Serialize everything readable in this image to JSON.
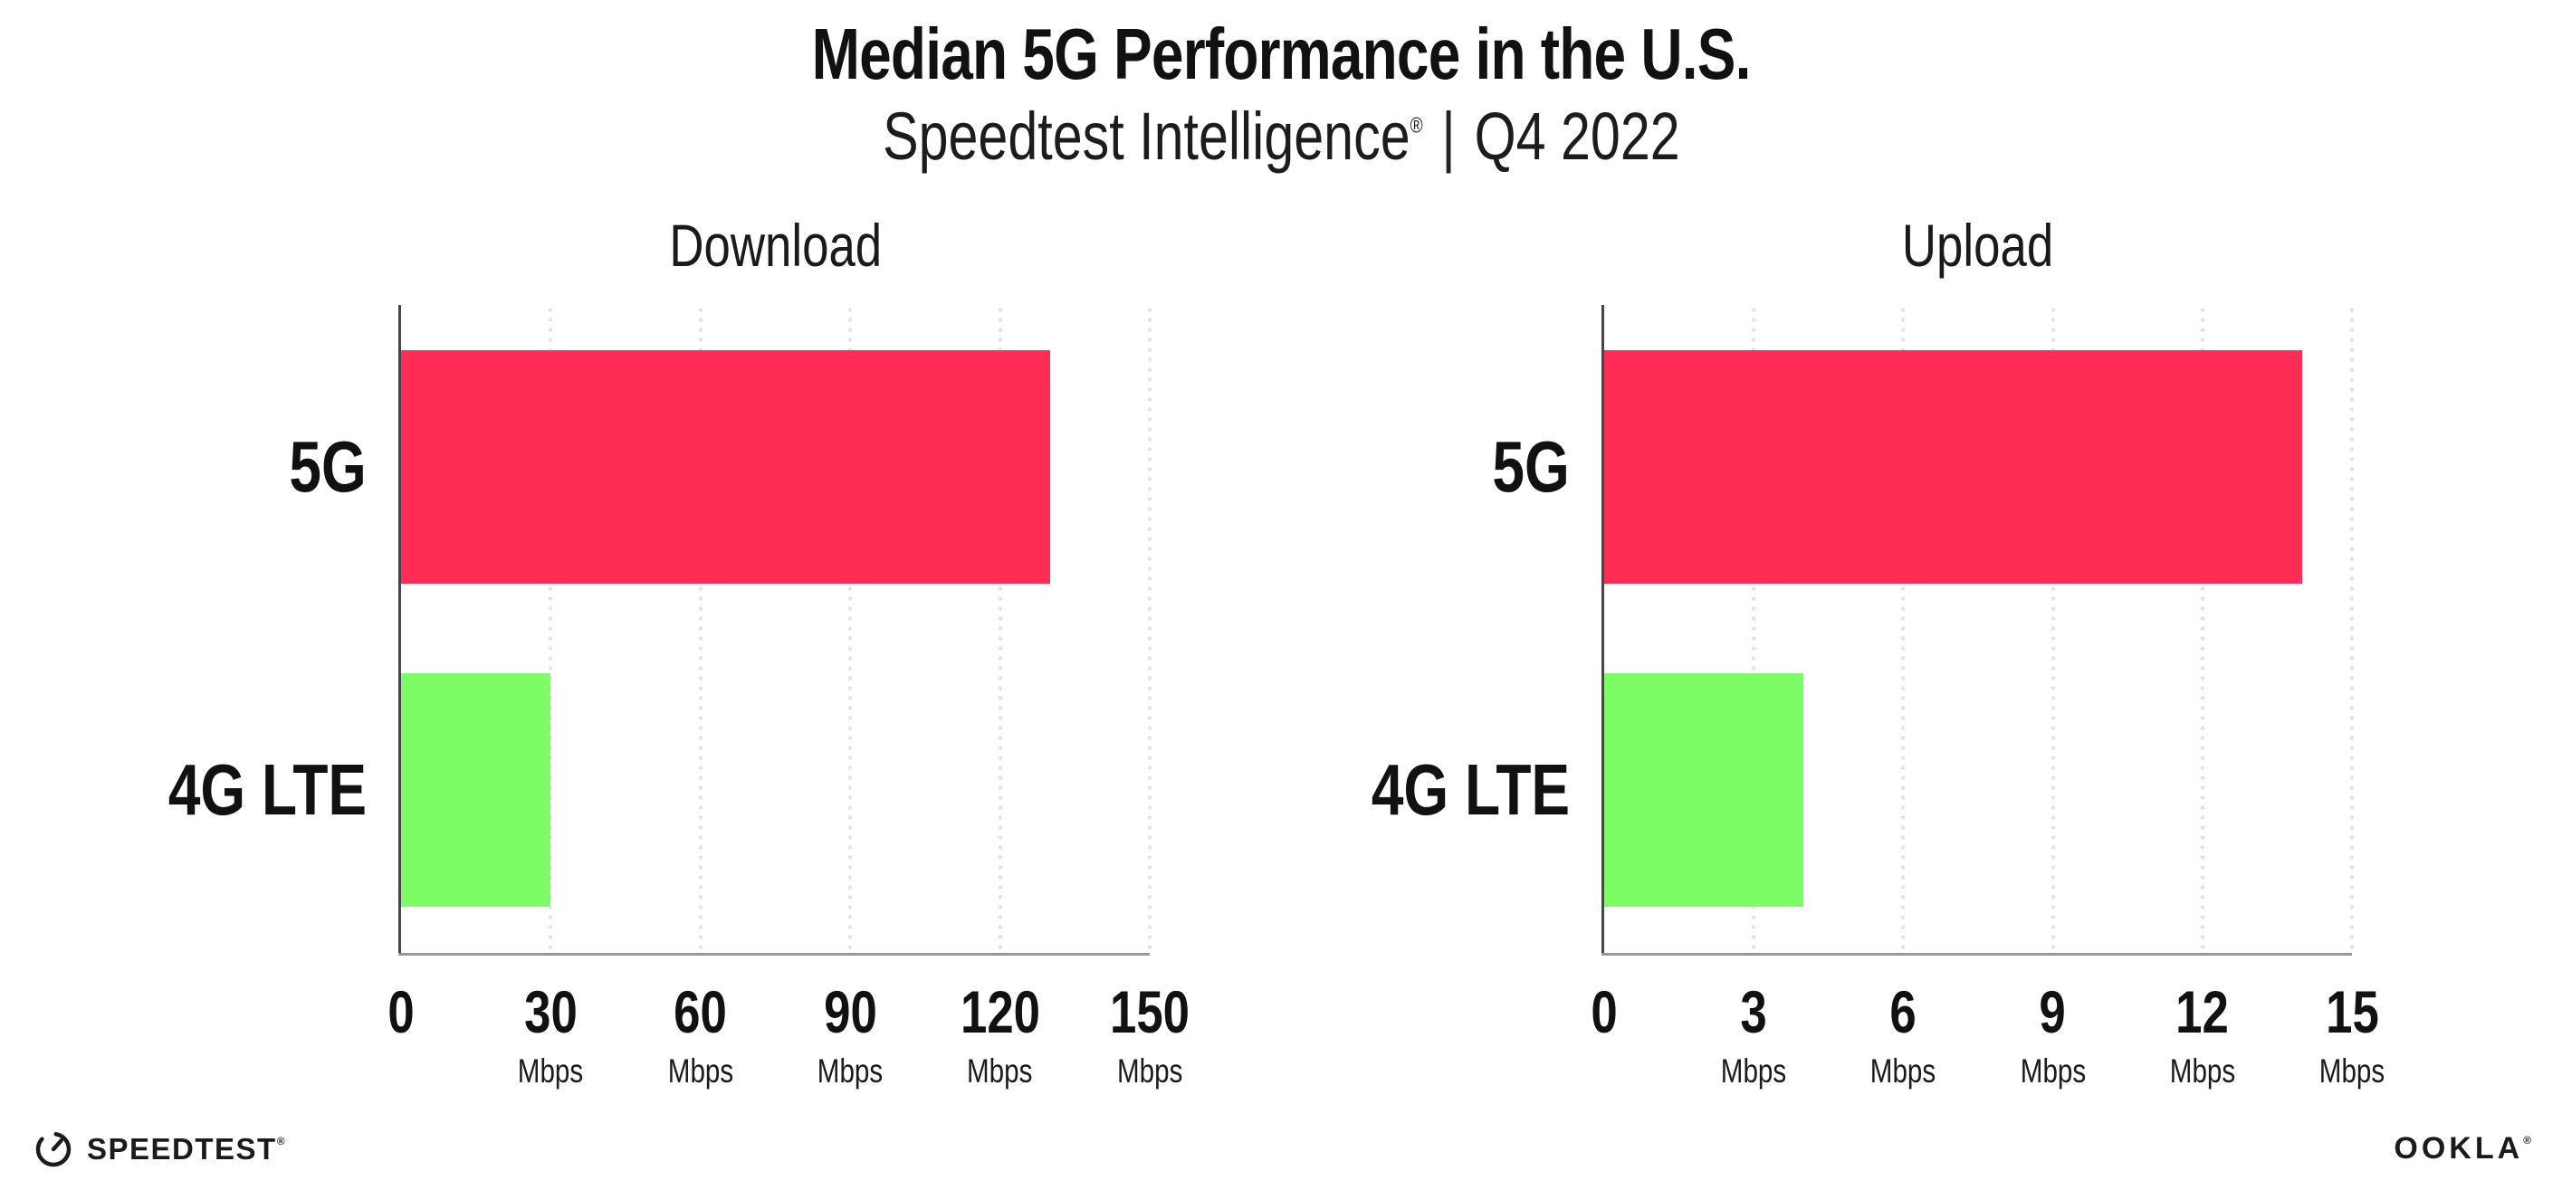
{
  "header": {
    "title": "Median 5G Performance in the U.S.",
    "subtitle": {
      "brand": "Speedtest Intelligence",
      "registered": "®",
      "separator": "|",
      "period": "Q4 2022"
    }
  },
  "chart_data": [
    {
      "type": "bar",
      "orientation": "horizontal",
      "title": "Download",
      "categories": [
        "5G",
        "4G LTE"
      ],
      "values": [
        130,
        30
      ],
      "unit": "Mbps",
      "xlim": [
        0,
        150
      ],
      "xticks": [
        0,
        30,
        60,
        90,
        120,
        150
      ],
      "grid": "dotted-vertical",
      "legend": "none",
      "bar_colors": [
        "#FF2D55",
        "#7DFC66"
      ]
    },
    {
      "type": "bar",
      "orientation": "horizontal",
      "title": "Upload",
      "categories": [
        "5G",
        "4G LTE"
      ],
      "values": [
        14,
        4
      ],
      "unit": "Mbps",
      "xlim": [
        0,
        15
      ],
      "xticks": [
        0,
        3,
        6,
        9,
        12,
        15
      ],
      "grid": "dotted-vertical",
      "legend": "none",
      "bar_colors": [
        "#FF2D55",
        "#7DFC66"
      ]
    }
  ],
  "colors": {
    "bar_5g": "#FF2D55",
    "bar_4g_lte": "#7DFC66",
    "grid_dot": "#E3E3EF",
    "axis_left": "#45454B",
    "axis_bottom": "#97979E",
    "background": "#FFFFFF",
    "text": "#111111"
  },
  "footer": {
    "speedtest_label": "SPEEDTEST",
    "speedtest_registered": "®",
    "speedtest_icon": "gauge-icon",
    "ookla_label": "OOKLA",
    "ookla_registered": "®"
  }
}
